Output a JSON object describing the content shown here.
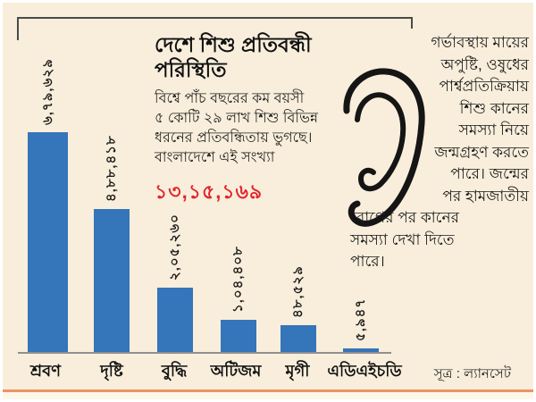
{
  "title": "দেশে শিশু প্রতিবন্ধী পরিস্থিতি",
  "intro": {
    "lines": [
      "বিশ্বে পাঁচ বছরের কম বয়সী",
      "৫ কোটি ২৯ লাখ শিশু বিভিন্ন",
      "ধরনের প্রতিবন্ধিতায় ভুগছে।",
      "বাংলাদেশে এই সংখ্যা"
    ],
    "total_count": "১৩,১৫,১৬৯"
  },
  "ear_note": {
    "lines": [
      "গর্ভাবস্থায় মায়ের",
      "অপুষ্টি, ওষুধের",
      "পার্শ্বপ্রতিক্রিয়ায়",
      "শিশু কানের",
      "সমস্যা নিয়ে",
      "জন্মগ্রহণ করতে",
      "পারে। জন্মের",
      "পর হামজাতীয়",
      "রোগের পর কানের",
      "সমস্যা দেখা দিতে",
      "পারে।"
    ]
  },
  "source": "সূত্র : ল্যানসেট",
  "colors": {
    "background": "#f8eedb",
    "bar": "#3575b9",
    "highlight_red": "#e1252d",
    "accent_line": "#ee9366",
    "ink": "#111111"
  },
  "chart_data": {
    "type": "bar",
    "title": "দেশে শিশু প্রতিবন্ধী পরিস্থিতি",
    "categories": [
      "শ্রবণ",
      "দৃষ্টি",
      "বুদ্ধি",
      "অটিজম",
      "মৃগী",
      "এডিএইচডি"
    ],
    "values": [
      679629,
      488418,
      205260,
      104408,
      48529,
      5947
    ],
    "value_labels": [
      "৬,৭৯,৬২৯",
      "৪,৮৮,৪১৮",
      "২,০৫,২৬০",
      "১,০৪,৪০৮",
      "৪৮,৫২৯",
      "৫,৯৪৭"
    ],
    "xlabel": "",
    "ylabel": "",
    "ylim": [
      0,
      700000
    ],
    "grid": false,
    "legend": false,
    "value_label_rotation": -90
  }
}
